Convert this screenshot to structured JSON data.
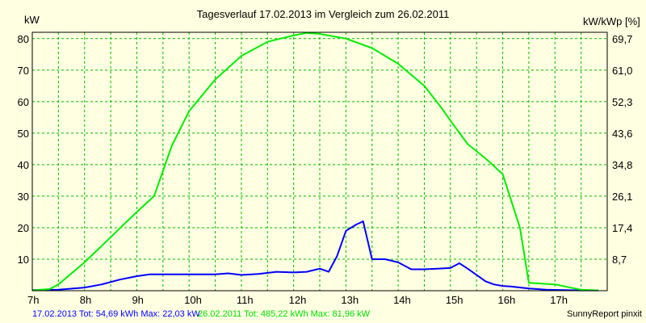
{
  "chart_data": {
    "type": "line",
    "title": "Tagesverlauf 17.02.2013 im Vergleich zum 26.02.2011",
    "ylabel_left": "kW",
    "ylabel_right": "kW/kWp [%]",
    "x_ticks": [
      "7h",
      "8h",
      "9h",
      "10h",
      "11h",
      "12h",
      "13h",
      "14h",
      "15h",
      "16h",
      "17h"
    ],
    "x_range": [
      7,
      18
    ],
    "ylim": [
      0,
      82
    ],
    "y_ticks_left": [
      10,
      20,
      30,
      40,
      50,
      60,
      70,
      80
    ],
    "y_ticks_right": [
      "8,7",
      "17,4",
      "26,1",
      "34,8",
      "43,6",
      "52,3",
      "61,0",
      "69,7"
    ],
    "grid": true,
    "series": [
      {
        "name": "17.02.2013",
        "color": "#0000ff",
        "x": [
          7.0,
          7.5,
          8.0,
          8.33,
          8.67,
          9.0,
          9.25,
          9.5,
          10.0,
          10.5,
          10.75,
          11.0,
          11.33,
          11.67,
          12.0,
          12.25,
          12.5,
          12.67,
          12.83,
          13.0,
          13.2,
          13.33,
          13.5,
          13.75,
          14.0,
          14.25,
          14.5,
          14.75,
          15.0,
          15.17,
          15.33,
          15.67,
          15.83,
          16.0,
          16.17,
          16.5,
          16.83,
          17.17,
          17.5,
          17.83
        ],
        "y": [
          0.2,
          0.3,
          1.0,
          2.0,
          3.5,
          4.6,
          5.2,
          5.2,
          5.2,
          5.2,
          5.5,
          5.0,
          5.3,
          6.0,
          5.8,
          6.0,
          7.0,
          6.0,
          11.0,
          19.0,
          21.0,
          22.0,
          10.0,
          10.0,
          9.0,
          6.8,
          6.8,
          7.0,
          7.2,
          8.7,
          7.0,
          3.0,
          2.0,
          1.5,
          1.3,
          0.7,
          0.3,
          0.2,
          0.1,
          0.1
        ]
      },
      {
        "name": "26.02.2011",
        "color": "#00ee00",
        "x": [
          7.0,
          7.33,
          7.5,
          8.0,
          8.5,
          9.0,
          9.33,
          9.67,
          10.0,
          10.5,
          11.0,
          11.5,
          12.0,
          12.25,
          12.5,
          13.0,
          13.5,
          14.0,
          14.5,
          14.83,
          15.0,
          15.33,
          15.67,
          16.0,
          16.33,
          16.5,
          17.0,
          17.5,
          17.83
        ],
        "y": [
          0.1,
          0.5,
          2.0,
          9.0,
          17.0,
          25.0,
          30.0,
          46.0,
          57.0,
          67.0,
          74.5,
          79.0,
          81.0,
          81.8,
          81.5,
          80.0,
          77.0,
          72.0,
          65.0,
          58.0,
          54.0,
          46.5,
          42.0,
          37.0,
          20.0,
          2.5,
          2.0,
          0.3,
          0.1
        ]
      }
    ]
  },
  "footer": {
    "legend_2013": "17.02.2013 Tot: 54,69 kWh Max: 22,03 kW",
    "legend_2011": "26.02.2011 Tot: 485,22 kWh Max: 81,96 kW",
    "credit": "SunnyReport pinxit"
  },
  "colors": {
    "background": "#ffffe1",
    "grid": "#00bb00",
    "series_2013": "#0000ff",
    "series_2011": "#00ee00",
    "axis": "#000000"
  }
}
